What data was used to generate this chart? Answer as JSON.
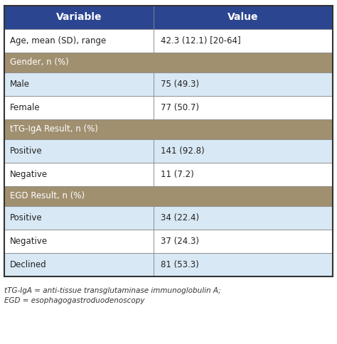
{
  "header": [
    "Variable",
    "Value"
  ],
  "header_bg": "#2B4590",
  "header_text_color": "#FFFFFF",
  "rows": [
    {
      "type": "data",
      "col1": "Age, mean (SD), range",
      "col2": "42.3 (12.1) [20-64]",
      "bg": "#FFFFFF"
    },
    {
      "type": "section",
      "col1": "Gender, n (%)",
      "col2": "",
      "bg": "#A09070"
    },
    {
      "type": "data",
      "col1": "Male",
      "col2": "75 (49.3)",
      "bg": "#D8E8F4"
    },
    {
      "type": "data",
      "col1": "Female",
      "col2": "77 (50.7)",
      "bg": "#FFFFFF"
    },
    {
      "type": "section",
      "col1": "tTG-IgA Result, n (%)",
      "col2": "",
      "bg": "#A09070"
    },
    {
      "type": "data",
      "col1": "Positive",
      "col2": "141 (92.8)",
      "bg": "#D8E8F4"
    },
    {
      "type": "data",
      "col1": "Negative",
      "col2": "11 (7.2)",
      "bg": "#FFFFFF"
    },
    {
      "type": "section",
      "col1": "EGD Result, n (%)",
      "col2": "",
      "bg": "#A09070"
    },
    {
      "type": "data",
      "col1": "Positive",
      "col2": "34 (22.4)",
      "bg": "#D8E8F4"
    },
    {
      "type": "data",
      "col1": "Negative",
      "col2": "37 (24.3)",
      "bg": "#FFFFFF"
    },
    {
      "type": "data",
      "col1": "Declined",
      "col2": "81 (53.3)",
      "bg": "#D8E8F4"
    }
  ],
  "footnote_line1": "tTG-IgA = anti-tissue transglutaminase immunoglobulin A;",
  "footnote_line2": "EGD = esophagogastroduodenoscopy",
  "col_split": 0.455,
  "border_color": "#888888",
  "text_color_dark": "#222222",
  "section_text_color": "#FFFFFF",
  "font_size": 8.5,
  "header_font_size": 10,
  "footnote_font_size": 7.5
}
